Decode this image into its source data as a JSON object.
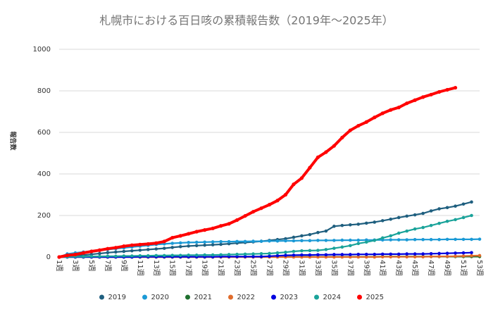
{
  "chart_data": {
    "type": "line",
    "title": "札幌市における百日咳の累積報告数（2019年～2025年）",
    "y_label": "報告数",
    "categories": [
      "1週",
      null,
      "3週",
      null,
      "5週",
      null,
      "7週",
      null,
      "9週",
      null,
      "11週",
      null,
      "13週",
      null,
      "15週",
      null,
      "17週",
      null,
      "19週",
      null,
      "21週",
      null,
      "23週",
      null,
      "25週",
      null,
      "27週",
      null,
      "29週",
      null,
      "31週",
      null,
      "33週",
      null,
      "35週",
      null,
      "37週",
      null,
      "39週",
      null,
      "41週",
      null,
      "43週",
      null,
      "45週",
      null,
      "47週",
      null,
      "49週",
      null,
      "51週",
      null,
      "53週"
    ],
    "ylim": [
      0,
      1000
    ],
    "yticks": [
      0,
      200,
      400,
      600,
      800,
      1000
    ],
    "grid": true,
    "legend": "bottom",
    "series": [
      {
        "name": "2019",
        "color": "#1f5f7f",
        "values": [
          0,
          2,
          5,
          9,
          13,
          17,
          21,
          24,
          27,
          30,
          33,
          36,
          39,
          42,
          46,
          50,
          53,
          55,
          57,
          59,
          61,
          64,
          67,
          70,
          73,
          76,
          80,
          84,
          88,
          95,
          102,
          108,
          118,
          125,
          148,
          152,
          155,
          158,
          163,
          168,
          175,
          182,
          190,
          197,
          203,
          210,
          222,
          232,
          238,
          245,
          255,
          265,
          null
        ]
      },
      {
        "name": "2020",
        "color": "#1b9ad6",
        "values": [
          0,
          15,
          20,
          24,
          28,
          32,
          36,
          40,
          44,
          48,
          52,
          56,
          60,
          63,
          66,
          68,
          70,
          71,
          72,
          73,
          74,
          74,
          75,
          75,
          76,
          76,
          77,
          77,
          78,
          78,
          79,
          79,
          80,
          80,
          80,
          81,
          81,
          81,
          82,
          82,
          82,
          83,
          83,
          83,
          84,
          84,
          84,
          84,
          85,
          85,
          85,
          85,
          86
        ]
      },
      {
        "name": "2021",
        "color": "#1e6f2e",
        "values": [
          0,
          0,
          0,
          0,
          0,
          0,
          0,
          0,
          0,
          0,
          0,
          0,
          0,
          0,
          0,
          0,
          0,
          0,
          0,
          0,
          1,
          1,
          1,
          1,
          1,
          1,
          1,
          1,
          1,
          1,
          1,
          1,
          1,
          1,
          1,
          1,
          1,
          1,
          1,
          1,
          2,
          2,
          2,
          2,
          2,
          2,
          2,
          2,
          2,
          2,
          2,
          2,
          2
        ]
      },
      {
        "name": "2022",
        "color": "#e06c2c",
        "values": [
          0,
          0,
          0,
          0,
          0,
          0,
          0,
          0,
          0,
          0,
          0,
          0,
          0,
          0,
          0,
          0,
          0,
          0,
          0,
          0,
          0,
          0,
          0,
          0,
          0,
          0,
          0,
          0,
          0,
          0,
          0,
          0,
          0,
          0,
          0,
          0,
          0,
          0,
          0,
          0,
          1,
          1,
          1,
          1,
          1,
          1,
          2,
          3,
          3,
          4,
          5,
          6,
          7
        ]
      },
      {
        "name": "2023",
        "color": "#0000e0",
        "values": [
          0,
          0,
          0,
          0,
          0,
          0,
          0,
          0,
          0,
          0,
          1,
          1,
          1,
          1,
          1,
          1,
          1,
          1,
          1,
          1,
          2,
          2,
          2,
          2,
          2,
          2,
          4,
          6,
          8,
          9,
          10,
          10,
          11,
          11,
          12,
          12,
          12,
          13,
          13,
          13,
          14,
          14,
          14,
          15,
          15,
          15,
          16,
          17,
          18,
          19,
          20,
          21,
          null
        ]
      },
      {
        "name": "2024",
        "color": "#1aa39a",
        "values": [
          0,
          1,
          2,
          2,
          3,
          3,
          4,
          4,
          5,
          5,
          6,
          6,
          7,
          7,
          8,
          8,
          9,
          9,
          10,
          10,
          11,
          12,
          13,
          14,
          15,
          16,
          17,
          20,
          23,
          27,
          30,
          31,
          32,
          36,
          42,
          48,
          55,
          65,
          72,
          80,
          92,
          102,
          115,
          125,
          135,
          142,
          152,
          162,
          172,
          180,
          190,
          200,
          null
        ]
      },
      {
        "name": "2025",
        "color": "#ff0000",
        "values": [
          0,
          8,
          12,
          20,
          27,
          33,
          40,
          45,
          52,
          57,
          60,
          63,
          67,
          75,
          93,
          102,
          112,
          122,
          130,
          138,
          150,
          160,
          178,
          198,
          218,
          235,
          252,
          272,
          300,
          350,
          380,
          430,
          480,
          505,
          535,
          575,
          610,
          632,
          650,
          672,
          692,
          708,
          720,
          740,
          755,
          770,
          782,
          795,
          805,
          815,
          null,
          null,
          null
        ]
      }
    ]
  }
}
